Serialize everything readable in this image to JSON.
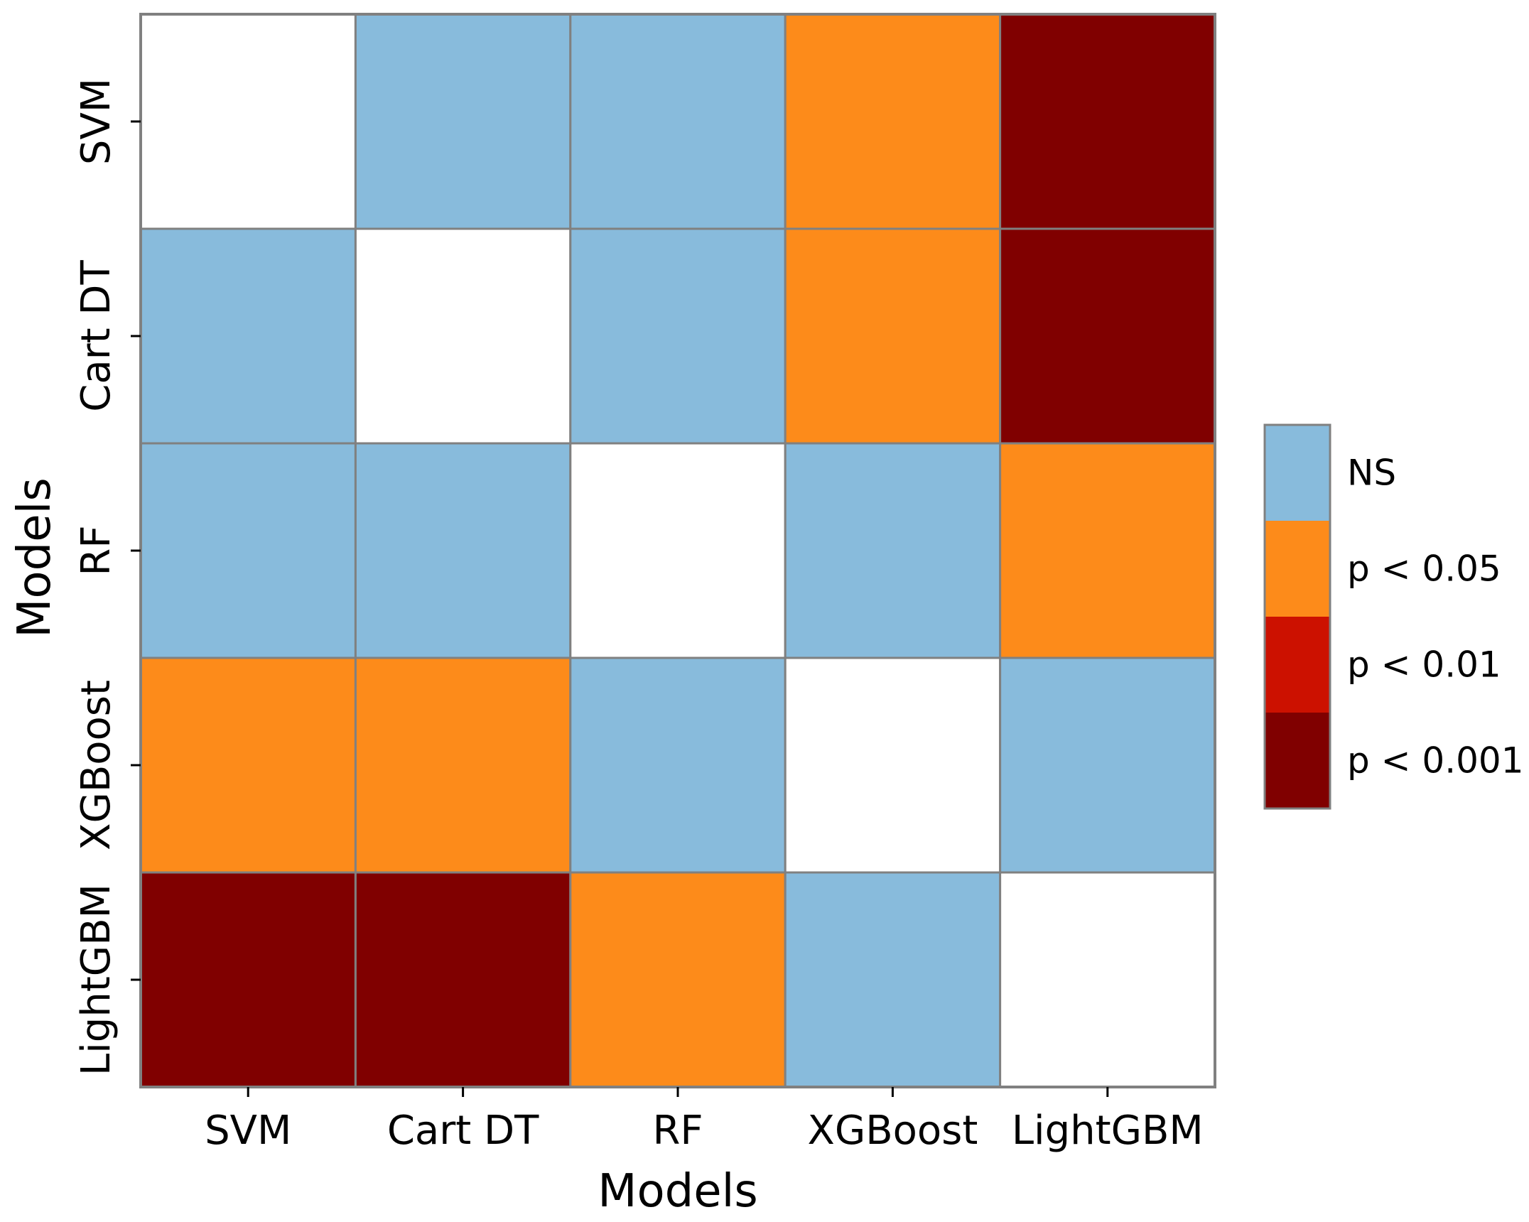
{
  "chart_data": {
    "type": "heatmap",
    "title": "",
    "xlabel": "Models",
    "ylabel": "Models",
    "categories": [
      "SVM",
      "Cart DT",
      "RF",
      "XGBoost",
      "LightGBM"
    ],
    "matrix": [
      [
        "",
        "NS",
        "NS",
        "p < 0.05",
        "p < 0.001"
      ],
      [
        "NS",
        "",
        "NS",
        "p < 0.05",
        "p < 0.001"
      ],
      [
        "NS",
        "NS",
        "",
        "NS",
        "p < 0.05"
      ],
      [
        "p < 0.05",
        "p < 0.05",
        "NS",
        "",
        "NS"
      ],
      [
        "p < 0.001",
        "p < 0.001",
        "p < 0.05",
        "NS",
        ""
      ]
    ],
    "diagonal_color": "#ffffff",
    "legend": [
      {
        "label": "NS",
        "color": "#88bbdc"
      },
      {
        "label": "p < 0.05",
        "color": "#fd8b1a"
      },
      {
        "label": "p < 0.01",
        "color": "#cc1100"
      },
      {
        "label": "p < 0.001",
        "color": "#800000"
      }
    ],
    "grid_color": "#808080"
  }
}
